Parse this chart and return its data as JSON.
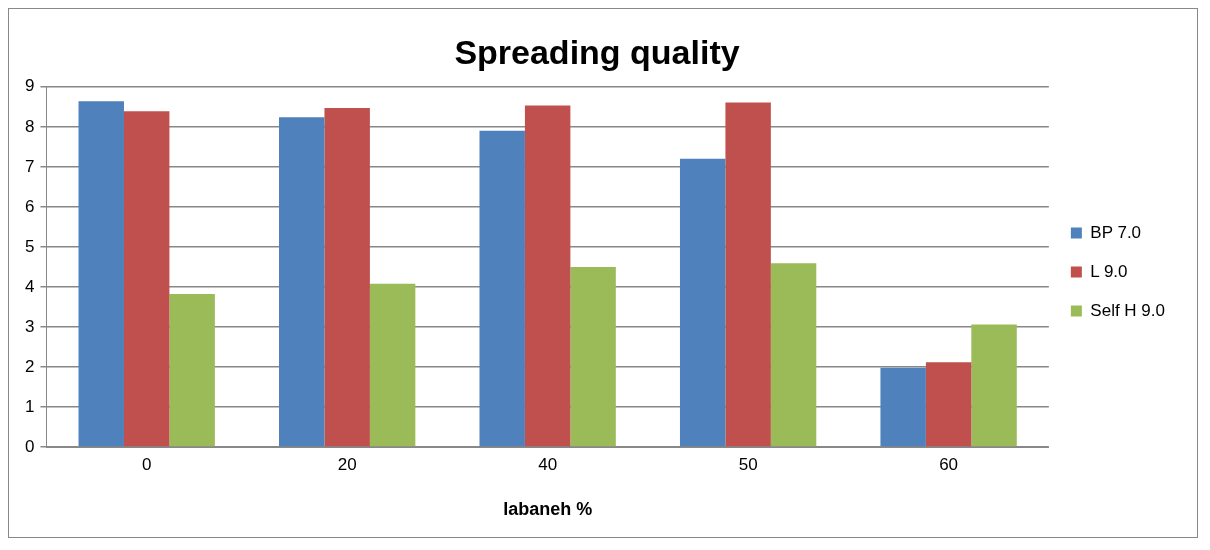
{
  "chart_data": {
    "type": "bar",
    "title": "Spreading quality",
    "xlabel": "labaneh %",
    "categories": [
      "0",
      "20",
      "40",
      "50",
      "60"
    ],
    "series": [
      {
        "name": "BP 7.0",
        "color": "#4f81bd",
        "values": [
          8.64,
          8.24,
          7.9,
          7.2,
          1.98
        ]
      },
      {
        "name": "L 9.0",
        "color": "#c0504d",
        "values": [
          8.39,
          8.47,
          8.53,
          8.61,
          2.12
        ]
      },
      {
        "name": "Self H 9.0",
        "color": "#9bbb59",
        "values": [
          3.82,
          4.08,
          4.5,
          4.59,
          3.06
        ]
      }
    ],
    "ylim": [
      0,
      9
    ],
    "yticks": [
      0,
      1,
      2,
      3,
      4,
      5,
      6,
      7,
      8,
      9
    ],
    "grid": "y",
    "legend": "right"
  }
}
